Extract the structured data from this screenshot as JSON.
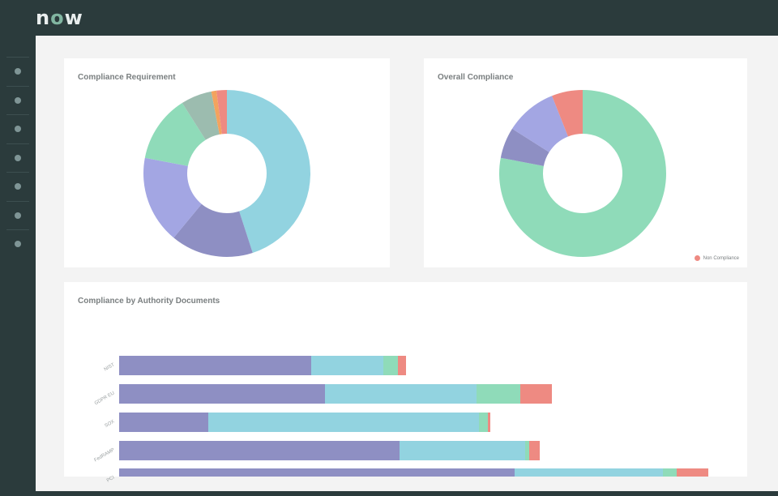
{
  "brand": {
    "name": "now"
  },
  "sidebar": {
    "items": [
      {
        "icon": "dot-icon"
      },
      {
        "icon": "dot-icon"
      },
      {
        "icon": "dot-icon"
      },
      {
        "icon": "dot-icon"
      },
      {
        "icon": "dot-icon"
      },
      {
        "icon": "dot-icon"
      },
      {
        "icon": "dot-icon"
      }
    ]
  },
  "cards": {
    "requirement": {
      "title": "Compliance Requirement"
    },
    "overall": {
      "title": "Overall Compliance",
      "legend_label": "Non Compliance"
    },
    "authority": {
      "title": "Compliance by Authority Documents"
    }
  },
  "colors": {
    "cyan": "#92d3e0",
    "purple": "#8e8fc3",
    "lavender": "#a3a6e3",
    "green": "#8fdbb9",
    "sage": "#9cbcaf",
    "orange": "#f3a35f",
    "red": "#ee8a82"
  },
  "chart_data": [
    {
      "type": "pie",
      "title": "Compliance Requirement",
      "slices": [
        {
          "value": 45,
          "color": "#92d3e0"
        },
        {
          "value": 16,
          "color": "#8e8fc3"
        },
        {
          "value": 17,
          "color": "#a3a6e3"
        },
        {
          "value": 13,
          "color": "#8fdbb9"
        },
        {
          "value": 6,
          "color": "#9cbcaf"
        },
        {
          "value": 1,
          "color": "#f3a35f"
        },
        {
          "value": 2,
          "color": "#ee8a82"
        }
      ]
    },
    {
      "type": "pie",
      "title": "Overall Compliance",
      "legend": [
        "Non Compliance"
      ],
      "slices": [
        {
          "value": 78,
          "color": "#8fdbb9"
        },
        {
          "value": 6,
          "color": "#8e8fc3"
        },
        {
          "value": 10,
          "color": "#a3a6e3"
        },
        {
          "value": 6,
          "color": "#ee8a82"
        }
      ]
    },
    {
      "type": "bar",
      "orientation": "horizontal",
      "stacked": true,
      "title": "Compliance by Authority Documents",
      "categories": [
        "NIST",
        "GDPR EU",
        "SOX",
        "FedRAMP",
        "PCI"
      ],
      "series": [
        {
          "name": "purple",
          "color": "#8e8fc3",
          "values": [
            237,
            254,
            110,
            346,
            488
          ]
        },
        {
          "name": "cyan",
          "color": "#92d3e0",
          "values": [
            89,
            187,
            334,
            155,
            183
          ]
        },
        {
          "name": "green",
          "color": "#8fdbb9",
          "values": [
            18,
            54,
            11,
            5,
            17
          ]
        },
        {
          "name": "red",
          "color": "#ee8a82",
          "values": [
            10,
            39,
            3,
            13,
            39
          ]
        }
      ],
      "xlim": [
        0,
        728
      ]
    }
  ]
}
